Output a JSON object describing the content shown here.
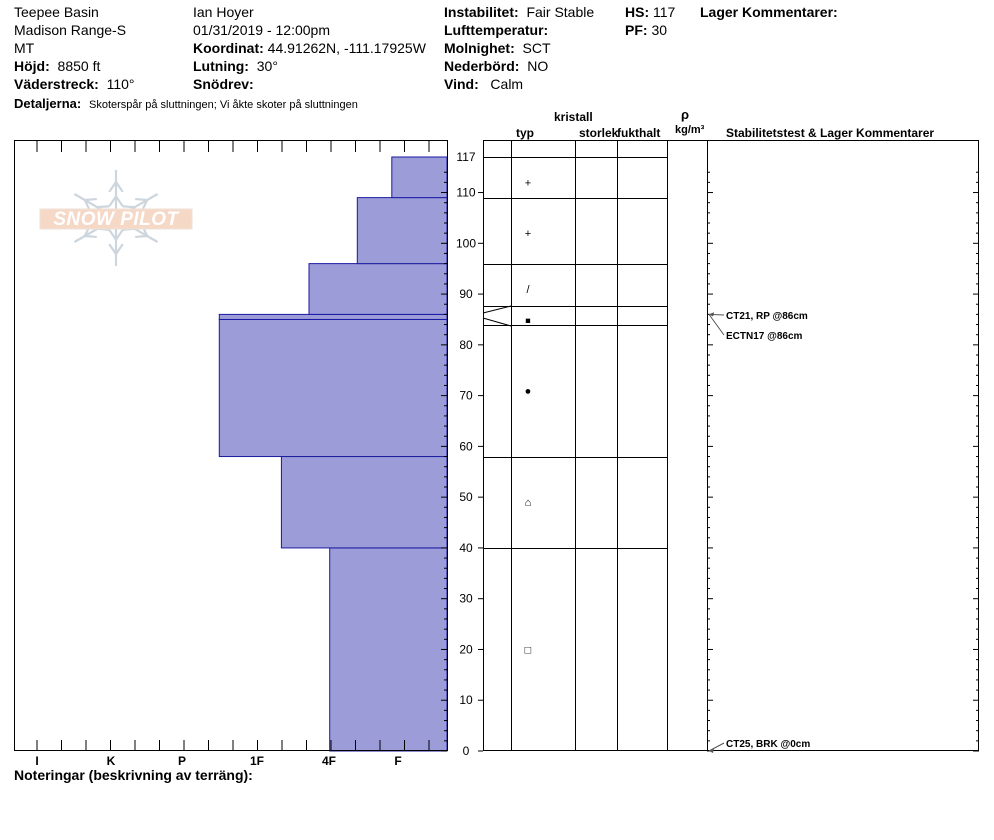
{
  "header": {
    "location": "Teepee Basin",
    "range": "Madison Range-S",
    "state": "MT",
    "elevation_label": "Höjd:",
    "elevation_value": "8850 ft",
    "aspect_label": "Väderstreck:",
    "aspect_value": "110°",
    "details_label": "Detaljerna:",
    "details_value": "Skoterspår på sluttningen;  Vi åkte skoter på sluttningen",
    "observer": "Ian Hoyer",
    "datetime": "01/31/2019 - 12:00pm",
    "coord_label": "Koordinat:",
    "coord_value": "44.91262N, -111.17925W",
    "slope_label": "Lutning:",
    "slope_value": "30°",
    "wind_loading_label": "Snödrev:",
    "wind_loading_value": "",
    "stability_label": "Instabilitet:",
    "stability_value": "Fair Stable",
    "air_temp_label": "Lufttemperatur:",
    "air_temp_value": "",
    "sky_label": "Molnighet:",
    "sky_value": "SCT",
    "precip_label": "Nederbörd:",
    "precip_value": "NO",
    "wind_label": "Vind:",
    "wind_value": "Calm",
    "hs_label": "HS:",
    "hs_value": "117",
    "pf_label": "PF:",
    "pf_value": "30",
    "layer_comments_label": "Lager Kommentarer:"
  },
  "logo_text": "SNOW PILOT",
  "columns": {
    "crystal_group": "kristall",
    "type": "typ",
    "size": "storlek",
    "moisture": "fukthalt",
    "rho": "ρ",
    "density_unit": "kg/m³",
    "stability": "Stabilitetstest & Lager Kommentarer"
  },
  "notes_label": "Noteringar (beskrivning av terräng):",
  "colors": {
    "hardness_fill": "#9c9cd8",
    "hardness_edge": "#1a1aa0"
  },
  "chart_data": {
    "type": "bar",
    "ylim": [
      0,
      117
    ],
    "y_ticks": [
      0,
      10,
      20,
      30,
      40,
      50,
      60,
      70,
      80,
      90,
      100,
      110
    ],
    "y_top_label": "117",
    "hardness_scale": [
      "I",
      "K",
      "P",
      "1F",
      "4F",
      "F"
    ],
    "layers": [
      {
        "bottom": 0,
        "top": 40,
        "hardness": 1.7
      },
      {
        "bottom": 40,
        "top": 58,
        "hardness": 2.4
      },
      {
        "bottom": 58,
        "top": 85,
        "hardness": 3.3
      },
      {
        "bottom": 85,
        "top": 86,
        "hardness": 3.3
      },
      {
        "bottom": 86,
        "top": 96,
        "hardness": 2.0
      },
      {
        "bottom": 96,
        "top": 109,
        "hardness": 1.3
      },
      {
        "bottom": 109,
        "top": 117,
        "hardness": 0.8
      }
    ],
    "crystal_symbols": [
      {
        "depth": 112,
        "symbol": "+"
      },
      {
        "depth": 102,
        "symbol": "+"
      },
      {
        "depth": 91,
        "symbol": "/"
      },
      {
        "depth": 85,
        "symbol": "■"
      },
      {
        "depth": 71,
        "symbol": "●"
      },
      {
        "depth": 49,
        "symbol": "⌂"
      },
      {
        "depth": 20,
        "symbol": "□"
      }
    ],
    "stability_tests": [
      {
        "depth": 86,
        "label": "CT21, RP @86cm"
      },
      {
        "depth": 86,
        "label": "ECTN17 @86cm"
      },
      {
        "depth": 0,
        "label": "CT25, BRK @0cm"
      }
    ]
  }
}
